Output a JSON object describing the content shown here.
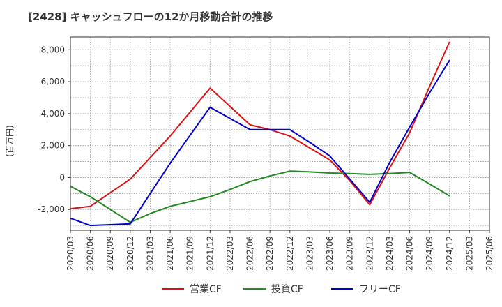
{
  "chart_data": {
    "type": "line",
    "title": "[2428]  キャッシュフローの12か月移動合計の推移",
    "ylabel": "(百万円)",
    "xlabel": "",
    "ylim": [
      -3300,
      8800
    ],
    "yticks": [
      -2000,
      0,
      2000,
      4000,
      6000,
      8000
    ],
    "ytick_labels": [
      "-2,000",
      "0",
      "2,000",
      "4,000",
      "6,000",
      "8,000"
    ],
    "categories": [
      "2020/03",
      "2020/06",
      "2020/09",
      "2020/12",
      "2021/03",
      "2021/06",
      "2021/09",
      "2021/12",
      "2022/03",
      "2022/06",
      "2022/09",
      "2022/12",
      "2023/03",
      "2023/06",
      "2023/09",
      "2023/12",
      "2024/03",
      "2024/06",
      "2024/09",
      "2024/12",
      "2025/03",
      "2025/06"
    ],
    "grid": true,
    "legend_position": "bottom-center",
    "series": [
      {
        "name": "営業CF",
        "color": "#dd1111",
        "values": [
          -1950,
          -1800,
          -950,
          -100,
          1250,
          2600,
          4100,
          5600,
          4450,
          3300,
          3000,
          2600,
          1850,
          1100,
          -200,
          -1700,
          600,
          2800,
          5700,
          8500,
          null,
          null
        ]
      },
      {
        "name": "投資CF",
        "color": "#228822",
        "values": [
          -550,
          -1200,
          -2000,
          -2800,
          -2250,
          -1800,
          -1500,
          -1200,
          -750,
          -250,
          100,
          400,
          350,
          280,
          250,
          200,
          250,
          320,
          -400,
          -1150,
          null,
          null
        ]
      },
      {
        "name": "フリーCF",
        "color": "#0000cc",
        "values": [
          -2550,
          -3000,
          -2950,
          -2900,
          -1000,
          900,
          2650,
          4400,
          3700,
          3000,
          3000,
          3000,
          2200,
          1350,
          -100,
          -1550,
          950,
          3150,
          5300,
          7350,
          null,
          null
        ]
      }
    ]
  }
}
